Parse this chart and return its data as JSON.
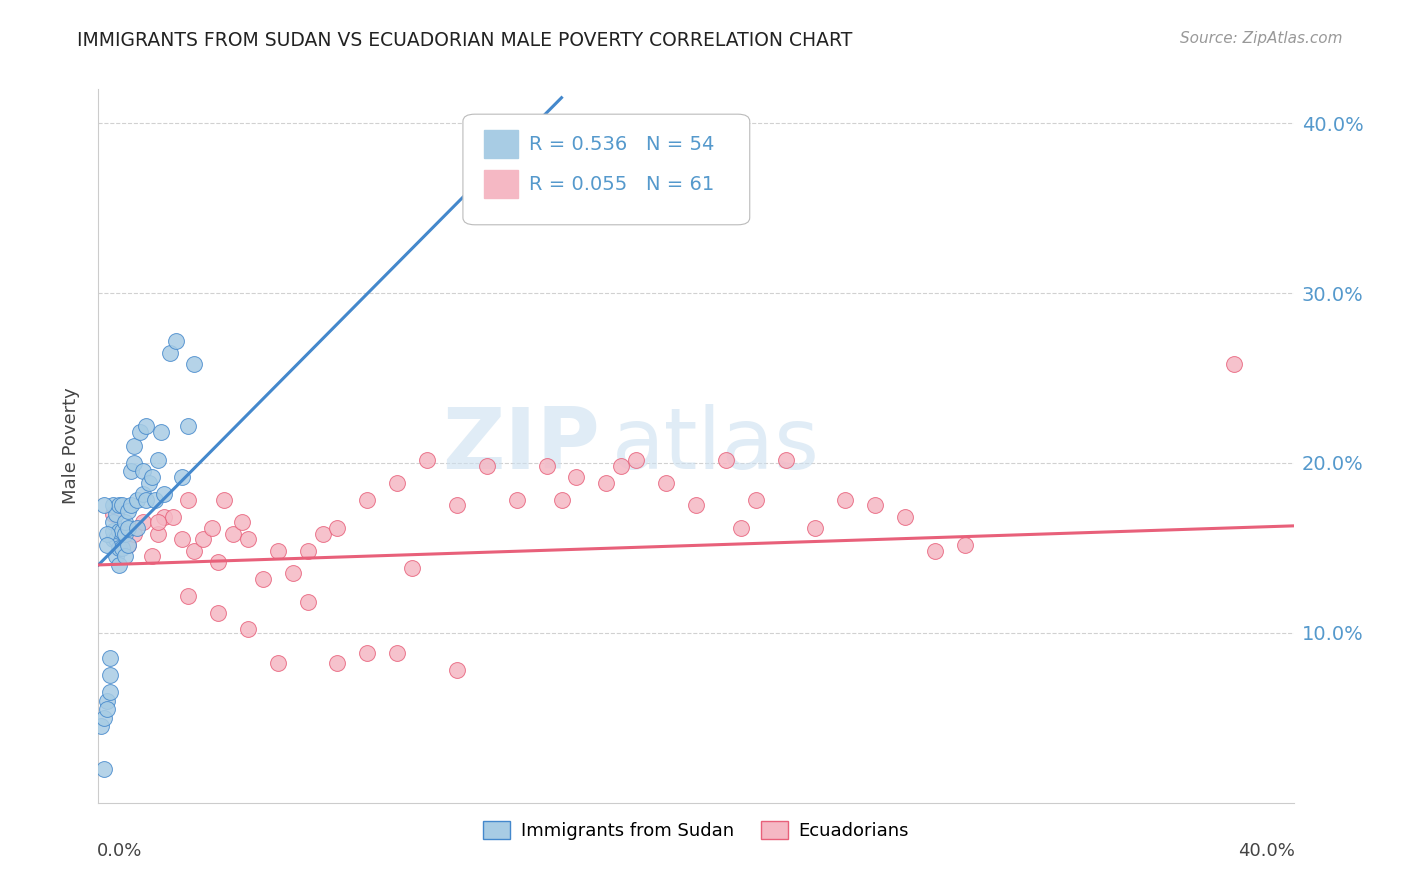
{
  "title": "IMMIGRANTS FROM SUDAN VS ECUADORIAN MALE POVERTY CORRELATION CHART",
  "source": "Source: ZipAtlas.com",
  "ylabel": "Male Poverty",
  "xlim": [
    0.0,
    0.4
  ],
  "ylim": [
    0.0,
    0.42
  ],
  "legend_label1": "Immigrants from Sudan",
  "legend_label2": "Ecuadorians",
  "color_blue": "#a8cce4",
  "color_pink": "#f5b8c4",
  "color_blue_line": "#4488cc",
  "color_pink_line": "#e8607a",
  "color_blue_text": "#5599cc",
  "watermark_zip": "ZIP",
  "watermark_atlas": "atlas",
  "sudan_x": [
    0.001,
    0.002,
    0.002,
    0.003,
    0.003,
    0.004,
    0.004,
    0.004,
    0.005,
    0.005,
    0.005,
    0.005,
    0.006,
    0.006,
    0.006,
    0.007,
    0.007,
    0.007,
    0.007,
    0.008,
    0.008,
    0.008,
    0.009,
    0.009,
    0.009,
    0.01,
    0.01,
    0.01,
    0.011,
    0.011,
    0.012,
    0.012,
    0.013,
    0.013,
    0.014,
    0.015,
    0.015,
    0.016,
    0.016,
    0.017,
    0.018,
    0.019,
    0.02,
    0.021,
    0.022,
    0.024,
    0.026,
    0.028,
    0.03,
    0.032,
    0.002,
    0.003,
    0.003,
    0.15
  ],
  "sudan_y": [
    0.045,
    0.05,
    0.02,
    0.06,
    0.055,
    0.065,
    0.075,
    0.085,
    0.155,
    0.16,
    0.165,
    0.175,
    0.145,
    0.155,
    0.17,
    0.14,
    0.15,
    0.16,
    0.175,
    0.15,
    0.16,
    0.175,
    0.145,
    0.158,
    0.165,
    0.152,
    0.162,
    0.172,
    0.175,
    0.195,
    0.2,
    0.21,
    0.162,
    0.178,
    0.218,
    0.182,
    0.195,
    0.178,
    0.222,
    0.188,
    0.192,
    0.178,
    0.202,
    0.218,
    0.182,
    0.265,
    0.272,
    0.192,
    0.222,
    0.258,
    0.175,
    0.158,
    0.152,
    0.36
  ],
  "ecuador_x": [
    0.005,
    0.008,
    0.01,
    0.012,
    0.015,
    0.018,
    0.02,
    0.022,
    0.025,
    0.028,
    0.03,
    0.032,
    0.035,
    0.038,
    0.04,
    0.042,
    0.045,
    0.048,
    0.05,
    0.055,
    0.06,
    0.065,
    0.07,
    0.075,
    0.08,
    0.09,
    0.1,
    0.105,
    0.11,
    0.12,
    0.13,
    0.14,
    0.15,
    0.155,
    0.16,
    0.17,
    0.175,
    0.18,
    0.19,
    0.2,
    0.21,
    0.215,
    0.22,
    0.23,
    0.24,
    0.25,
    0.26,
    0.27,
    0.28,
    0.29,
    0.02,
    0.03,
    0.04,
    0.05,
    0.06,
    0.07,
    0.08,
    0.09,
    0.1,
    0.12,
    0.38
  ],
  "ecuador_y": [
    0.17,
    0.155,
    0.152,
    0.158,
    0.165,
    0.145,
    0.158,
    0.168,
    0.168,
    0.155,
    0.178,
    0.148,
    0.155,
    0.162,
    0.142,
    0.178,
    0.158,
    0.165,
    0.155,
    0.132,
    0.148,
    0.135,
    0.148,
    0.158,
    0.162,
    0.178,
    0.188,
    0.138,
    0.202,
    0.175,
    0.198,
    0.178,
    0.198,
    0.178,
    0.192,
    0.188,
    0.198,
    0.202,
    0.188,
    0.175,
    0.202,
    0.162,
    0.178,
    0.202,
    0.162,
    0.178,
    0.175,
    0.168,
    0.148,
    0.152,
    0.165,
    0.122,
    0.112,
    0.102,
    0.082,
    0.118,
    0.082,
    0.088,
    0.088,
    0.078,
    0.258
  ],
  "blue_line_x": [
    0.0,
    0.155
  ],
  "blue_line_y": [
    0.14,
    0.415
  ],
  "pink_line_x": [
    0.0,
    0.4
  ],
  "pink_line_y": [
    0.14,
    0.163
  ]
}
